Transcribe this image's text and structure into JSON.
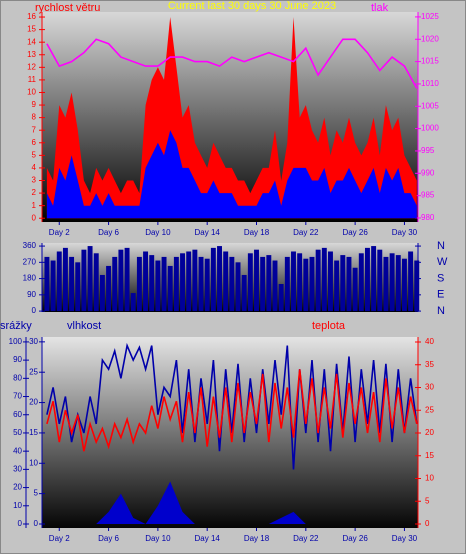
{
  "chart_data": [
    {
      "type": "area",
      "title": "Current last 30 days 30 June 2023",
      "ylabel": "rychlost větru",
      "y2label": "tlak",
      "ycolor": "#ff0000",
      "y2color": "#ff00ff",
      "x": [
        1,
        1.5,
        2,
        2.5,
        3,
        3.5,
        4,
        4.5,
        5,
        5.5,
        6,
        6.5,
        7,
        7.5,
        8,
        8.5,
        9,
        9.5,
        10,
        10.5,
        11,
        11.5,
        12,
        12.5,
        13,
        13.5,
        14,
        14.5,
        15,
        15.5,
        16,
        16.5,
        17,
        17.5,
        18,
        18.5,
        19,
        19.5,
        20,
        20.5,
        21,
        21.5,
        22,
        22.5,
        23,
        23.5,
        24,
        24.5,
        25,
        25.5,
        26,
        26.5,
        27,
        27.5,
        28,
        28.5,
        29,
        29.5,
        30,
        30.5,
        31
      ],
      "xlim": [
        0.6,
        31.1
      ],
      "xticks": [
        {
          "value": 2,
          "label": "Day 2"
        },
        {
          "value": 6,
          "label": "Day 6"
        },
        {
          "value": 10,
          "label": "Day 10"
        },
        {
          "value": 14,
          "label": "Day 14"
        },
        {
          "value": 18,
          "label": "Day 18"
        },
        {
          "value": 22,
          "label": "Day 22"
        },
        {
          "value": 26,
          "label": "Day 26"
        },
        {
          "value": 30,
          "label": "Day 30"
        }
      ],
      "ylim": [
        -0.3,
        16.4
      ],
      "yticks": [
        0,
        1,
        2,
        3,
        4,
        5,
        6,
        7,
        8,
        9,
        10,
        11,
        12,
        13,
        14,
        15,
        16
      ],
      "y2lim": [
        979.1,
        1026.1
      ],
      "y2ticks": [
        980,
        985,
        990,
        995,
        1000,
        1005,
        1010,
        1015,
        1020,
        1025
      ],
      "series": [
        {
          "kind": "area",
          "color": "#ff0000",
          "values": [
            4,
            3,
            9,
            8,
            10,
            7,
            3,
            2,
            4,
            3,
            4,
            3,
            2,
            3,
            3,
            2,
            9,
            11,
            12,
            11,
            16,
            12,
            8,
            9,
            6,
            5,
            4,
            6,
            5,
            4,
            4,
            3,
            3,
            2,
            3,
            4,
            4,
            7,
            3,
            6,
            16,
            8,
            9,
            7,
            6,
            8,
            5,
            7,
            6,
            8,
            6,
            5,
            6,
            8,
            5,
            9,
            7,
            8,
            5,
            4,
            3
          ]
        },
        {
          "kind": "area",
          "color": "#0000ff",
          "values": [
            2,
            1,
            4,
            3,
            5,
            3,
            1,
            1,
            2,
            1,
            2,
            1,
            1,
            1,
            1,
            1,
            4,
            5,
            6,
            5,
            7,
            6,
            4,
            4,
            3,
            2,
            2,
            3,
            2,
            2,
            2,
            1,
            1,
            1,
            1,
            2,
            2,
            3,
            1,
            3,
            4,
            4,
            4,
            3,
            3,
            4,
            2,
            3,
            3,
            4,
            3,
            2,
            3,
            4,
            2,
            4,
            3,
            4,
            2,
            2,
            1
          ]
        },
        {
          "kind": "line",
          "axis": "y2",
          "color": "#ff00ff",
          "x": [
            1,
            2,
            3,
            4,
            5,
            6,
            7,
            8,
            9,
            10,
            11,
            12,
            13,
            14,
            15,
            16,
            17,
            18,
            19,
            20,
            21,
            22,
            23,
            24,
            25,
            26,
            27,
            28,
            29,
            30,
            31
          ],
          "values": [
            1019,
            1014,
            1015,
            1017,
            1020,
            1019,
            1016,
            1015,
            1014,
            1014,
            1016,
            1016,
            1015,
            1015,
            1014,
            1016,
            1015,
            1016,
            1017,
            1016,
            1015,
            1018,
            1012,
            1016,
            1020,
            1020,
            1017,
            1013,
            1016,
            1014,
            1009
          ]
        }
      ]
    },
    {
      "type": "bar",
      "ycolor": "#0000aa",
      "y2color": "#0000aa",
      "x": [
        1,
        1.5,
        2,
        2.5,
        3,
        3.5,
        4,
        4.5,
        5,
        5.5,
        6,
        6.5,
        7,
        7.5,
        8,
        8.5,
        9,
        9.5,
        10,
        10.5,
        11,
        11.5,
        12,
        12.5,
        13,
        13.5,
        14,
        14.5,
        15,
        15.5,
        16,
        16.5,
        17,
        17.5,
        18,
        18.5,
        19,
        19.5,
        20,
        20.5,
        21,
        21.5,
        22,
        22.5,
        23,
        23.5,
        24,
        24.5,
        25,
        25.5,
        26,
        26.5,
        27,
        27.5,
        28,
        28.5,
        29,
        29.5,
        30,
        30.5,
        31
      ],
      "xlim": [
        0.6,
        31.1
      ],
      "ylim": [
        -5,
        377
      ],
      "yticks": [
        0,
        90,
        180,
        270,
        360
      ],
      "y2ticks": [
        {
          "value": 360,
          "label": "N"
        },
        {
          "value": 270,
          "label": "W"
        },
        {
          "value": 180,
          "label": "S"
        },
        {
          "value": 90,
          "label": "E"
        },
        {
          "value": 0,
          "label": "N"
        }
      ],
      "series": [
        {
          "kind": "bar",
          "color": "#000099",
          "values": [
            300,
            280,
            330,
            350,
            300,
            270,
            340,
            360,
            320,
            200,
            250,
            300,
            340,
            350,
            100,
            300,
            330,
            310,
            280,
            300,
            250,
            300,
            320,
            330,
            340,
            300,
            290,
            350,
            360,
            330,
            300,
            270,
            200,
            320,
            340,
            300,
            310,
            280,
            150,
            300,
            330,
            320,
            290,
            300,
            340,
            350,
            330,
            280,
            310,
            300,
            240,
            320,
            350,
            360,
            340,
            300,
            320,
            310,
            290,
            330,
            280
          ]
        }
      ]
    },
    {
      "type": "line",
      "ylabel": "srážky",
      "y3label": "vlhkost",
      "y2label": "teplota",
      "ycolor": "#0000aa",
      "y3color": "#0000aa",
      "y2color": "#ff0000",
      "x": [
        1,
        1.5,
        2,
        2.5,
        3,
        3.5,
        4,
        4.5,
        5,
        5.5,
        6,
        6.5,
        7,
        7.5,
        8,
        8.5,
        9,
        9.5,
        10,
        10.5,
        11,
        11.5,
        12,
        12.5,
        13,
        13.5,
        14,
        14.5,
        15,
        15.5,
        16,
        16.5,
        17,
        17.5,
        18,
        18.5,
        19,
        19.5,
        20,
        20.5,
        21,
        21.5,
        22,
        22.5,
        23,
        23.5,
        24,
        24.5,
        25,
        25.5,
        26,
        26.5,
        27,
        27.5,
        28,
        28.5,
        29,
        29.5,
        30,
        30.5,
        31
      ],
      "xlim": [
        0.6,
        31.1
      ],
      "xticks": [
        {
          "value": 2,
          "label": "Day 2"
        },
        {
          "value": 6,
          "label": "Day 6"
        },
        {
          "value": 10,
          "label": "Day 10"
        },
        {
          "value": 14,
          "label": "Day 14"
        },
        {
          "value": 18,
          "label": "Day 18"
        },
        {
          "value": 22,
          "label": "Day 22"
        },
        {
          "value": 26,
          "label": "Day 26"
        },
        {
          "value": 30,
          "label": "Day 30"
        }
      ],
      "ylim": [
        -2.2,
        102.7
      ],
      "yticks": [
        0,
        10,
        20,
        30,
        40,
        50,
        60,
        70,
        80,
        90,
        100
      ],
      "y3lim": [
        -0.66,
        30.8
      ],
      "y3ticks": [
        0,
        5,
        10,
        15,
        20,
        25,
        30
      ],
      "y2lim": [
        -0.88,
        41.1
      ],
      "y2ticks": [
        0,
        5,
        10,
        15,
        20,
        25,
        30,
        35,
        40
      ],
      "series": [
        {
          "kind": "line",
          "color": "#0000aa",
          "values": [
            60,
            75,
            55,
            70,
            45,
            60,
            50,
            70,
            55,
            90,
            85,
            95,
            80,
            98,
            90,
            97,
            85,
            98,
            60,
            75,
            70,
            90,
            50,
            85,
            45,
            80,
            55,
            90,
            40,
            85,
            50,
            88,
            45,
            80,
            50,
            85,
            55,
            90,
            60,
            98,
            30,
            85,
            50,
            90,
            45,
            85,
            40,
            88,
            50,
            92,
            45,
            85,
            55,
            90,
            50,
            88,
            45,
            85,
            50,
            80,
            55
          ]
        },
        {
          "kind": "line",
          "axis": "y2",
          "color": "#ff0000",
          "values": [
            22,
            27,
            18,
            25,
            20,
            24,
            16,
            22,
            18,
            21,
            17,
            22,
            19,
            23,
            18,
            22,
            20,
            26,
            21,
            28,
            23,
            27,
            18,
            29,
            20,
            30,
            17,
            28,
            19,
            30,
            18,
            31,
            20,
            29,
            22,
            33,
            18,
            31,
            21,
            30,
            19,
            34,
            22,
            32,
            20,
            30,
            21,
            33,
            19,
            31,
            22,
            30,
            20,
            29,
            18,
            32,
            21,
            30,
            20,
            28,
            22
          ]
        },
        {
          "kind": "area",
          "axis": "y3",
          "color": "#0000cc",
          "x": [
            1,
            2,
            3,
            4,
            5,
            6,
            7,
            8,
            9,
            10,
            11,
            12,
            13,
            14,
            15,
            16,
            17,
            18,
            19,
            20,
            21,
            22,
            23,
            24,
            25,
            26,
            27,
            28,
            29,
            30,
            31
          ],
          "values": [
            0,
            0,
            0,
            0,
            0,
            2,
            5,
            1,
            0,
            3,
            7,
            2,
            0,
            0,
            0,
            0,
            0,
            0,
            0,
            1,
            2,
            0,
            0,
            0,
            0,
            0,
            0,
            0,
            0,
            0,
            0
          ]
        }
      ]
    }
  ]
}
